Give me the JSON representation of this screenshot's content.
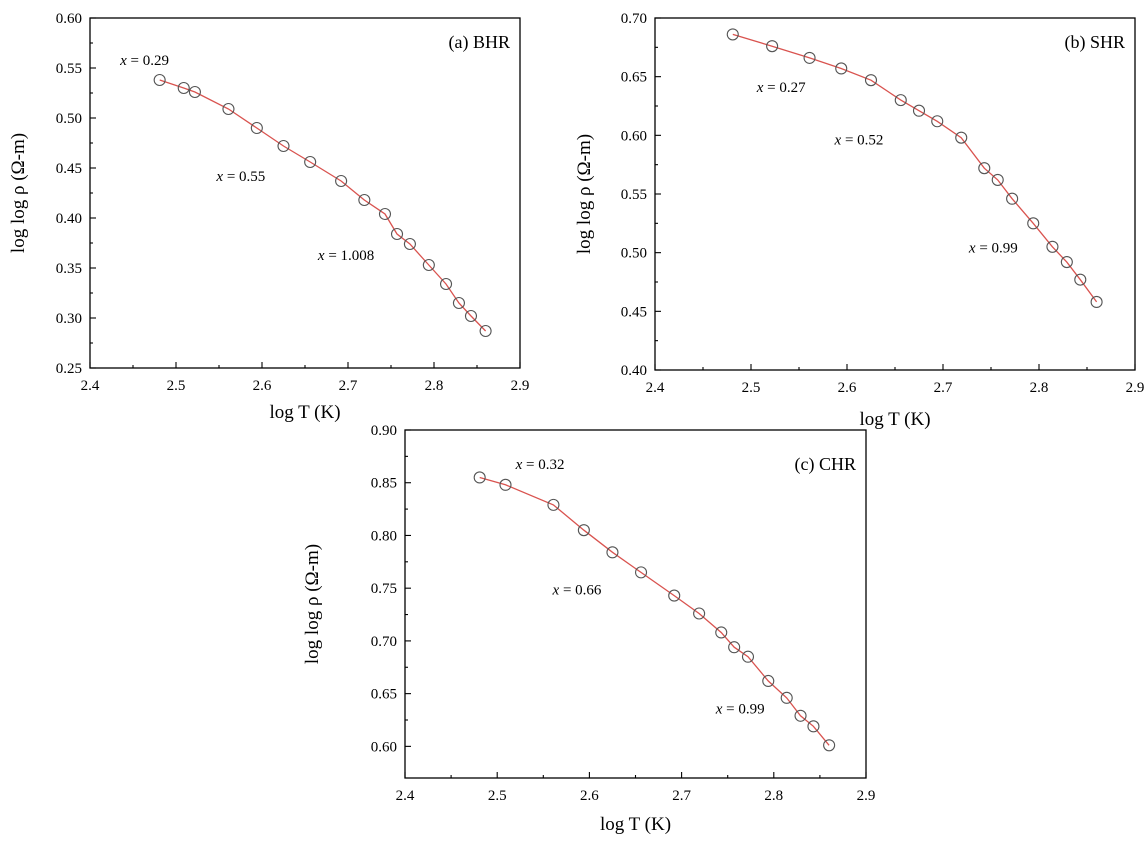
{
  "chart_data": [
    {
      "type": "line",
      "panel_label": "(a) BHR",
      "xlabel": "log T (K)",
      "ylabel": "log log ρ (Ω-m)",
      "xlim": [
        2.4,
        2.9
      ],
      "ylim": [
        0.25,
        0.6
      ],
      "x_ticks": [
        "2.4",
        "2.5",
        "2.6",
        "2.7",
        "2.8",
        "2.9"
      ],
      "y_ticks": [
        "0.25",
        "0.30",
        "0.35",
        "0.40",
        "0.45",
        "0.50",
        "0.55",
        "0.60"
      ],
      "grid": false,
      "marker_color": "#555555",
      "line_color": "#d9534f",
      "x": [
        2.481,
        2.509,
        2.522,
        2.561,
        2.594,
        2.625,
        2.656,
        2.692,
        2.719,
        2.743,
        2.757,
        2.772,
        2.794,
        2.814,
        2.829,
        2.843,
        2.86
      ],
      "y": [
        0.538,
        0.53,
        0.526,
        0.509,
        0.49,
        0.472,
        0.456,
        0.437,
        0.418,
        0.404,
        0.384,
        0.374,
        0.353,
        0.334,
        0.315,
        0.302,
        0.287
      ],
      "annotations": [
        {
          "prefix": "x",
          "value": " = 0.29",
          "x": 2.435,
          "y": 0.553
        },
        {
          "prefix": "x",
          "value": " = 0.55",
          "x": 2.547,
          "y": 0.437
        },
        {
          "prefix": "x",
          "value": " = 1.008",
          "x": 2.665,
          "y": 0.358
        }
      ]
    },
    {
      "type": "line",
      "panel_label": "(b) SHR",
      "xlabel": "log T (K)",
      "ylabel": "log log ρ (Ω-m)",
      "xlim": [
        2.4,
        2.9
      ],
      "ylim": [
        0.4,
        0.7
      ],
      "x_ticks": [
        "2.4",
        "2.5",
        "2.6",
        "2.7",
        "2.8",
        "2.9"
      ],
      "y_ticks": [
        "0.40",
        "0.45",
        "0.50",
        "0.55",
        "0.60",
        "0.65",
        "0.70"
      ],
      "grid": false,
      "marker_color": "#555555",
      "line_color": "#d9534f",
      "x": [
        2.481,
        2.522,
        2.561,
        2.594,
        2.625,
        2.656,
        2.675,
        2.694,
        2.719,
        2.743,
        2.757,
        2.772,
        2.794,
        2.814,
        2.829,
        2.843,
        2.86
      ],
      "y": [
        0.686,
        0.676,
        0.666,
        0.657,
        0.647,
        0.63,
        0.621,
        0.612,
        0.598,
        0.572,
        0.562,
        0.546,
        0.525,
        0.505,
        0.492,
        0.477,
        0.458
      ],
      "annotations": [
        {
          "prefix": "x",
          "value": " = 0.27",
          "x": 2.506,
          "y": 0.637
        },
        {
          "prefix": "x",
          "value": " = 0.52",
          "x": 2.587,
          "y": 0.592
        },
        {
          "prefix": "x",
          "value": " = 0.99",
          "x": 2.727,
          "y": 0.5
        }
      ]
    },
    {
      "type": "line",
      "panel_label": "(c) CHR",
      "xlabel": "log T (K)",
      "ylabel": "log log ρ (Ω-m)",
      "xlim": [
        2.4,
        2.9
      ],
      "ylim": [
        0.57,
        0.9
      ],
      "x_ticks": [
        "2.4",
        "2.5",
        "2.6",
        "2.7",
        "2.8",
        "2.9"
      ],
      "y_ticks": [
        "0.60",
        "0.65",
        "0.70",
        "0.75",
        "0.80",
        "0.85",
        "0.90"
      ],
      "grid": false,
      "marker_color": "#555555",
      "line_color": "#d9534f",
      "x": [
        2.481,
        2.509,
        2.561,
        2.594,
        2.625,
        2.656,
        2.692,
        2.719,
        2.743,
        2.757,
        2.772,
        2.794,
        2.814,
        2.829,
        2.843,
        2.86
      ],
      "y": [
        0.855,
        0.848,
        0.829,
        0.805,
        0.784,
        0.765,
        0.743,
        0.726,
        0.708,
        0.694,
        0.685,
        0.662,
        0.646,
        0.629,
        0.619,
        0.601
      ],
      "annotations": [
        {
          "prefix": "x",
          "value": " = 0.32",
          "x": 2.52,
          "y": 0.863
        },
        {
          "prefix": "x",
          "value": " = 0.66",
          "x": 2.56,
          "y": 0.744
        },
        {
          "prefix": "x",
          "value": " = 0.99",
          "x": 2.737,
          "y": 0.631
        }
      ]
    }
  ]
}
